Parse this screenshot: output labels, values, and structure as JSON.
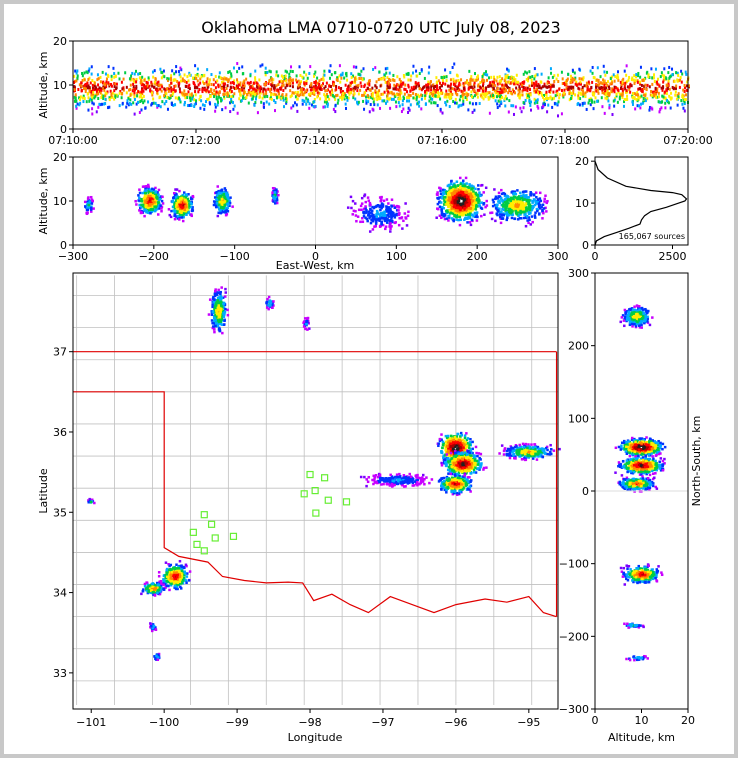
{
  "title": "Oklahoma LMA 0710-0720 UTC July 08, 2023",
  "colors": {
    "scale": [
      "#7a00ff",
      "#c800ff",
      "#0033ff",
      "#00aaff",
      "#00cc44",
      "#ffee00",
      "#ff8800",
      "#ff0000",
      "#aa0000",
      "#202020",
      "#ffffff"
    ],
    "border": "#e00000",
    "county": "#c0c0c0",
    "station": "#66ee33"
  },
  "chart_data": [
    {
      "name": "time-height",
      "type": "heatmap",
      "xlabel": "",
      "ylabel": "Altitude, km",
      "x_ticks": [
        "07:10:00",
        "07:12:00",
        "07:14:00",
        "07:16:00",
        "07:18:00",
        "07:20:00"
      ],
      "y_ticks": [
        "0",
        "10",
        "20"
      ],
      "ylim": [
        0,
        20
      ]
    },
    {
      "name": "east-west-altitude",
      "type": "heatmap",
      "xlabel": "East-West, km",
      "ylabel": "Altitude, km",
      "x_ticks": [
        "−300",
        "−200",
        "−100",
        "0",
        "100",
        "200",
        "300"
      ],
      "y_ticks": [
        "0",
        "10",
        "20"
      ],
      "xlim": [
        -300,
        300
      ],
      "ylim": [
        0,
        20
      ],
      "clusters": [
        {
          "x": -280,
          "alt": 9,
          "rx": 8,
          "ry": 2.5,
          "n": 40,
          "peak": 4
        },
        {
          "x": -205,
          "alt": 10,
          "rx": 20,
          "ry": 4,
          "n": 360,
          "peak": 8
        },
        {
          "x": -165,
          "alt": 9,
          "rx": 18,
          "ry": 4,
          "n": 320,
          "peak": 8
        },
        {
          "x": -115,
          "alt": 10,
          "rx": 15,
          "ry": 4,
          "n": 200,
          "peak": 6
        },
        {
          "x": -50,
          "alt": 11,
          "rx": 5,
          "ry": 3,
          "n": 50,
          "peak": 4
        },
        {
          "x": 180,
          "alt": 10,
          "rx": 35,
          "ry": 6,
          "n": 900,
          "peak": 10
        },
        {
          "x": 250,
          "alt": 9,
          "rx": 45,
          "ry": 5,
          "n": 450,
          "peak": 6
        },
        {
          "x": 80,
          "alt": 7,
          "rx": 45,
          "ry": 5,
          "n": 220,
          "peak": 3
        }
      ]
    },
    {
      "name": "altitude-histogram",
      "type": "line",
      "xlabel": "",
      "ylabel": "",
      "x_ticks": [
        "0",
        "2500"
      ],
      "y_ticks": [
        "0",
        "10",
        "20"
      ],
      "xlim": [
        0,
        3000
      ],
      "ylim": [
        0,
        21
      ],
      "annotation": "165,067 sources",
      "x": [
        0,
        50,
        300,
        700,
        1100,
        1450,
        1500,
        1600,
        1800,
        2300,
        2700,
        2900,
        2950,
        2800,
        2500,
        1800,
        1000,
        400,
        100,
        0
      ],
      "y": [
        0,
        1,
        2,
        3,
        4,
        5,
        6,
        7,
        8,
        9,
        10,
        10.5,
        11,
        12,
        12.5,
        13,
        14,
        16,
        18,
        20
      ]
    },
    {
      "name": "plan-view",
      "type": "heatmap",
      "xlabel": "Longitude",
      "ylabel": "Latitude",
      "x_ticks": [
        "−101",
        "−100",
        "−99",
        "−98",
        "−97",
        "−96",
        "−95"
      ],
      "y_ticks": [
        "33",
        "34",
        "35",
        "36",
        "37"
      ],
      "xlim": [
        -101.25,
        -94.6
      ],
      "ylim": [
        32.55,
        37.98
      ],
      "clusters": [
        {
          "lon": -99.25,
          "lat": 37.5,
          "rx": 0.15,
          "ry": 0.35,
          "n": 260,
          "peak": 6
        },
        {
          "lon": -98.55,
          "lat": 37.6,
          "rx": 0.08,
          "ry": 0.1,
          "n": 40,
          "peak": 4
        },
        {
          "lon": -98.05,
          "lat": 37.35,
          "rx": 0.06,
          "ry": 0.1,
          "n": 30,
          "peak": 3
        },
        {
          "lon": -101.0,
          "lat": 35.13,
          "rx": 0.06,
          "ry": 0.04,
          "n": 15,
          "peak": 4
        },
        {
          "lon": -99.85,
          "lat": 34.2,
          "rx": 0.25,
          "ry": 0.2,
          "n": 260,
          "peak": 8
        },
        {
          "lon": -100.15,
          "lat": 34.05,
          "rx": 0.2,
          "ry": 0.1,
          "n": 160,
          "peak": 7
        },
        {
          "lon": -100.15,
          "lat": 33.57,
          "rx": 0.06,
          "ry": 0.06,
          "n": 25,
          "peak": 4
        },
        {
          "lon": -100.1,
          "lat": 33.2,
          "rx": 0.06,
          "ry": 0.06,
          "n": 25,
          "peak": 4
        },
        {
          "lon": -96.0,
          "lat": 35.8,
          "rx": 0.3,
          "ry": 0.25,
          "n": 420,
          "peak": 10
        },
        {
          "lon": -95.9,
          "lat": 35.6,
          "rx": 0.35,
          "ry": 0.2,
          "n": 380,
          "peak": 9
        },
        {
          "lon": -96.0,
          "lat": 35.35,
          "rx": 0.3,
          "ry": 0.15,
          "n": 260,
          "peak": 8
        },
        {
          "lon": -95.0,
          "lat": 35.75,
          "rx": 0.45,
          "ry": 0.12,
          "n": 300,
          "peak": 6
        },
        {
          "lon": -96.8,
          "lat": 35.4,
          "rx": 0.6,
          "ry": 0.1,
          "n": 220,
          "peak": 3
        }
      ],
      "stations": [
        {
          "lon": -99.45,
          "lat": 34.97
        },
        {
          "lon": -99.6,
          "lat": 34.75
        },
        {
          "lon": -99.35,
          "lat": 34.85
        },
        {
          "lon": -99.3,
          "lat": 34.68
        },
        {
          "lon": -99.55,
          "lat": 34.6
        },
        {
          "lon": -99.45,
          "lat": 34.52
        },
        {
          "lon": -99.05,
          "lat": 34.7
        },
        {
          "lon": -98.0,
          "lat": 35.47
        },
        {
          "lon": -97.8,
          "lat": 35.43
        },
        {
          "lon": -98.08,
          "lat": 35.23
        },
        {
          "lon": -97.93,
          "lat": 35.27
        },
        {
          "lon": -97.75,
          "lat": 35.15
        },
        {
          "lon": -97.5,
          "lat": 35.13
        },
        {
          "lon": -97.92,
          "lat": 34.99
        }
      ]
    },
    {
      "name": "altitude-north-south",
      "type": "heatmap",
      "xlabel": "Altitude, km",
      "ylabel": "North-South, km",
      "x_ticks": [
        "0",
        "10",
        "20"
      ],
      "y_ticks": [
        "−300",
        "−200",
        "−100",
        "0",
        "100",
        "200",
        "300"
      ],
      "xlim": [
        0,
        20
      ],
      "ylim": [
        -300,
        300
      ],
      "clusters": [
        {
          "alt": 9,
          "ns": 240,
          "rx": 4,
          "ry": 18,
          "n": 260,
          "peak": 6
        },
        {
          "alt": 10,
          "ns": 60,
          "rx": 6,
          "ry": 15,
          "n": 500,
          "peak": 10
        },
        {
          "alt": 10,
          "ns": 35,
          "rx": 6,
          "ry": 15,
          "n": 420,
          "peak": 9
        },
        {
          "alt": 9,
          "ns": 10,
          "rx": 5,
          "ry": 12,
          "n": 260,
          "peak": 7
        },
        {
          "alt": 10,
          "ns": -115,
          "rx": 5,
          "ry": 15,
          "n": 300,
          "peak": 8
        },
        {
          "alt": 8,
          "ns": -185,
          "rx": 3,
          "ry": 4,
          "n": 30,
          "peak": 4
        },
        {
          "alt": 9,
          "ns": -230,
          "rx": 3,
          "ry": 4,
          "n": 30,
          "peak": 4
        }
      ]
    }
  ]
}
